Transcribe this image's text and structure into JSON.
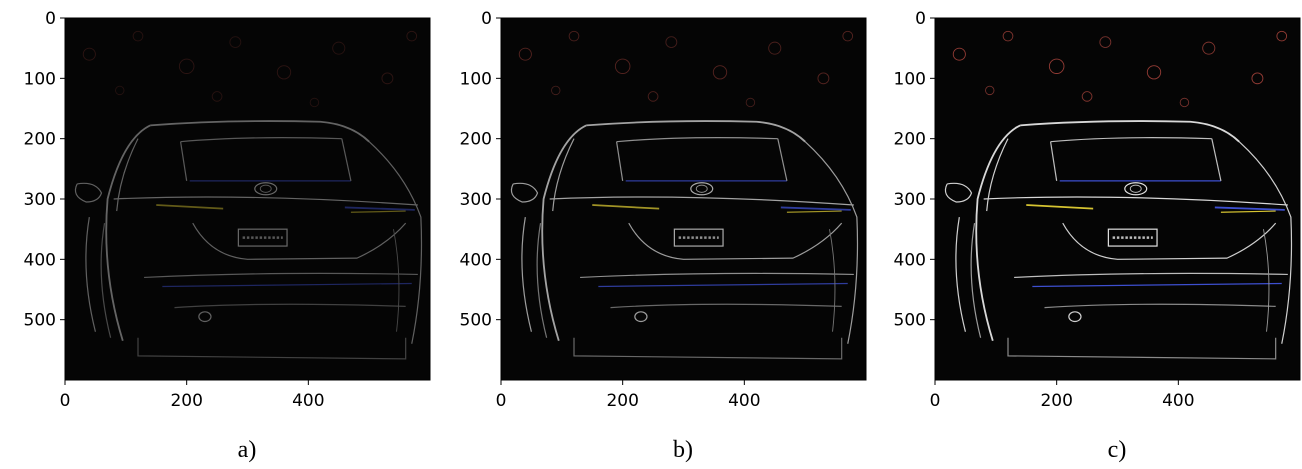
{
  "figure": {
    "panels": [
      {
        "caption": "a)",
        "style": "sparse-edges",
        "y_ticks": [
          "0",
          "100",
          "200",
          "300",
          "400",
          "500"
        ],
        "x_ticks": [
          "0",
          "200",
          "400"
        ]
      },
      {
        "caption": "b)",
        "style": "medium-edges",
        "y_ticks": [
          "0",
          "100",
          "200",
          "300",
          "400",
          "500"
        ],
        "x_ticks": [
          "0",
          "200",
          "400"
        ]
      },
      {
        "caption": "c)",
        "style": "dense-edges",
        "y_ticks": [
          "0",
          "100",
          "200",
          "300",
          "400",
          "500"
        ],
        "x_ticks": [
          "0",
          "200",
          "400"
        ]
      }
    ],
    "colors": {
      "image_background": "#050505",
      "edge_white": "#d8d8d8",
      "edge_yellow": "#d6c431",
      "edge_blue": "#3d4fd0",
      "edge_red": "#a2413a"
    }
  }
}
